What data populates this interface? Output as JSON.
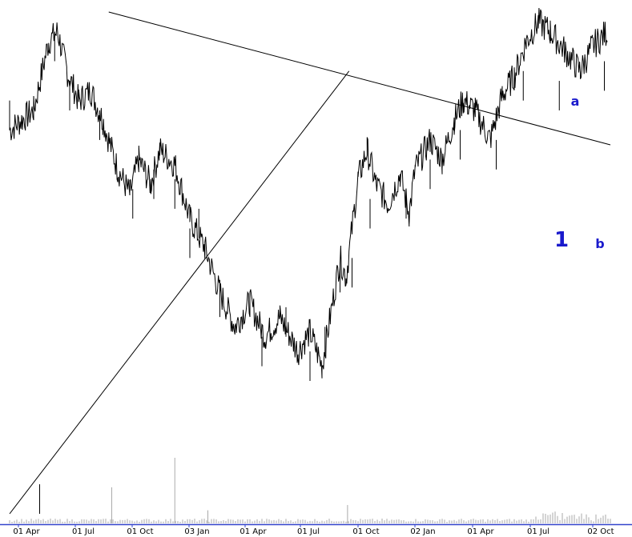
{
  "chart_data": {
    "type": "line",
    "title": "",
    "xlabel": "",
    "ylabel": "",
    "grid": false,
    "x_ticks": [
      "01 Apr",
      "01 Jul",
      "01 Oct",
      "03 Jan",
      "01 Apr",
      "01 Jul",
      "01 Oct",
      "02 Jan",
      "01 Apr",
      "01 Jul",
      "02 Oct"
    ],
    "price_series": {
      "name": "",
      "color": "#000000",
      "points": [
        [
          0.0,
          78
        ],
        [
          0.8,
          82
        ],
        [
          1.3,
          96
        ],
        [
          1.6,
          98
        ],
        [
          1.9,
          90
        ],
        [
          2.3,
          84
        ],
        [
          2.7,
          86
        ],
        [
          3.1,
          80
        ],
        [
          3.6,
          70
        ],
        [
          4.0,
          65
        ],
        [
          4.3,
          72
        ],
        [
          4.7,
          67
        ],
        [
          5.0,
          74
        ],
        [
          5.5,
          71
        ],
        [
          6.0,
          60
        ],
        [
          6.5,
          54
        ],
        [
          7.0,
          45
        ],
        [
          7.5,
          38
        ],
        [
          8.0,
          43
        ],
        [
          8.5,
          36
        ],
        [
          9.0,
          40
        ],
        [
          9.6,
          33
        ],
        [
          10.0,
          37
        ],
        [
          10.4,
          30
        ],
        [
          11.0,
          52
        ],
        [
          11.2,
          48
        ],
        [
          11.6,
          68
        ],
        [
          11.9,
          74
        ],
        [
          12.2,
          67
        ],
        [
          12.6,
          63
        ],
        [
          13.0,
          69
        ],
        [
          13.3,
          61
        ],
        [
          13.5,
          70
        ],
        [
          14.0,
          76
        ],
        [
          14.4,
          72
        ],
        [
          14.8,
          80
        ],
        [
          15.1,
          84
        ],
        [
          15.5,
          82
        ],
        [
          16.0,
          76
        ],
        [
          16.4,
          85
        ],
        [
          16.8,
          89
        ],
        [
          17.2,
          96
        ],
        [
          17.6,
          100
        ],
        [
          18.0,
          98
        ],
        [
          18.5,
          94
        ],
        [
          19.0,
          90
        ],
        [
          19.4,
          95
        ],
        [
          19.9,
          98
        ]
      ],
      "lows": [
        [
          0.0,
          78
        ],
        [
          1.0,
          0
        ],
        [
          1.5,
          92
        ],
        [
          2.0,
          82
        ],
        [
          3.0,
          76
        ],
        [
          4.1,
          60
        ],
        [
          4.8,
          64
        ],
        [
          5.5,
          62
        ],
        [
          6.0,
          52
        ],
        [
          6.3,
          56
        ],
        [
          7.0,
          40
        ],
        [
          8.4,
          30
        ],
        [
          9.2,
          36
        ],
        [
          10.0,
          27
        ],
        [
          10.5,
          32
        ],
        [
          11.0,
          45
        ],
        [
          11.4,
          46
        ],
        [
          12.0,
          58
        ],
        [
          13.2,
          60
        ],
        [
          14.0,
          66
        ],
        [
          15.0,
          72
        ],
        [
          16.2,
          70
        ],
        [
          17.1,
          84
        ],
        [
          18.3,
          82
        ],
        [
          19.8,
          86
        ]
      ]
    },
    "trendlines": [
      {
        "name": "rising",
        "from": [
          0.0,
          0
        ],
        "to": [
          11.3,
          90
        ]
      },
      {
        "name": "falling",
        "from": [
          3.3,
          102
        ],
        "to": [
          20.0,
          75
        ]
      }
    ],
    "annotations": [
      {
        "text": "1",
        "x": 11.3,
        "y": 58,
        "color": "#1a1acc",
        "size": "large"
      },
      {
        "text": "a",
        "x": 11.65,
        "y": 82,
        "color": "#1a1acc",
        "size": "small"
      },
      {
        "text": "b",
        "x": 12.25,
        "y": 55,
        "color": "#1a1acc",
        "size": "small"
      }
    ],
    "volume": {
      "color": "#aaaaaa",
      "spikes": [
        {
          "x": 3.4,
          "value": 0.55
        },
        {
          "x": 5.5,
          "value": 1.0
        },
        {
          "x": 6.6,
          "value": 0.2
        },
        {
          "x": 11.25,
          "value": 0.28
        }
      ]
    }
  }
}
